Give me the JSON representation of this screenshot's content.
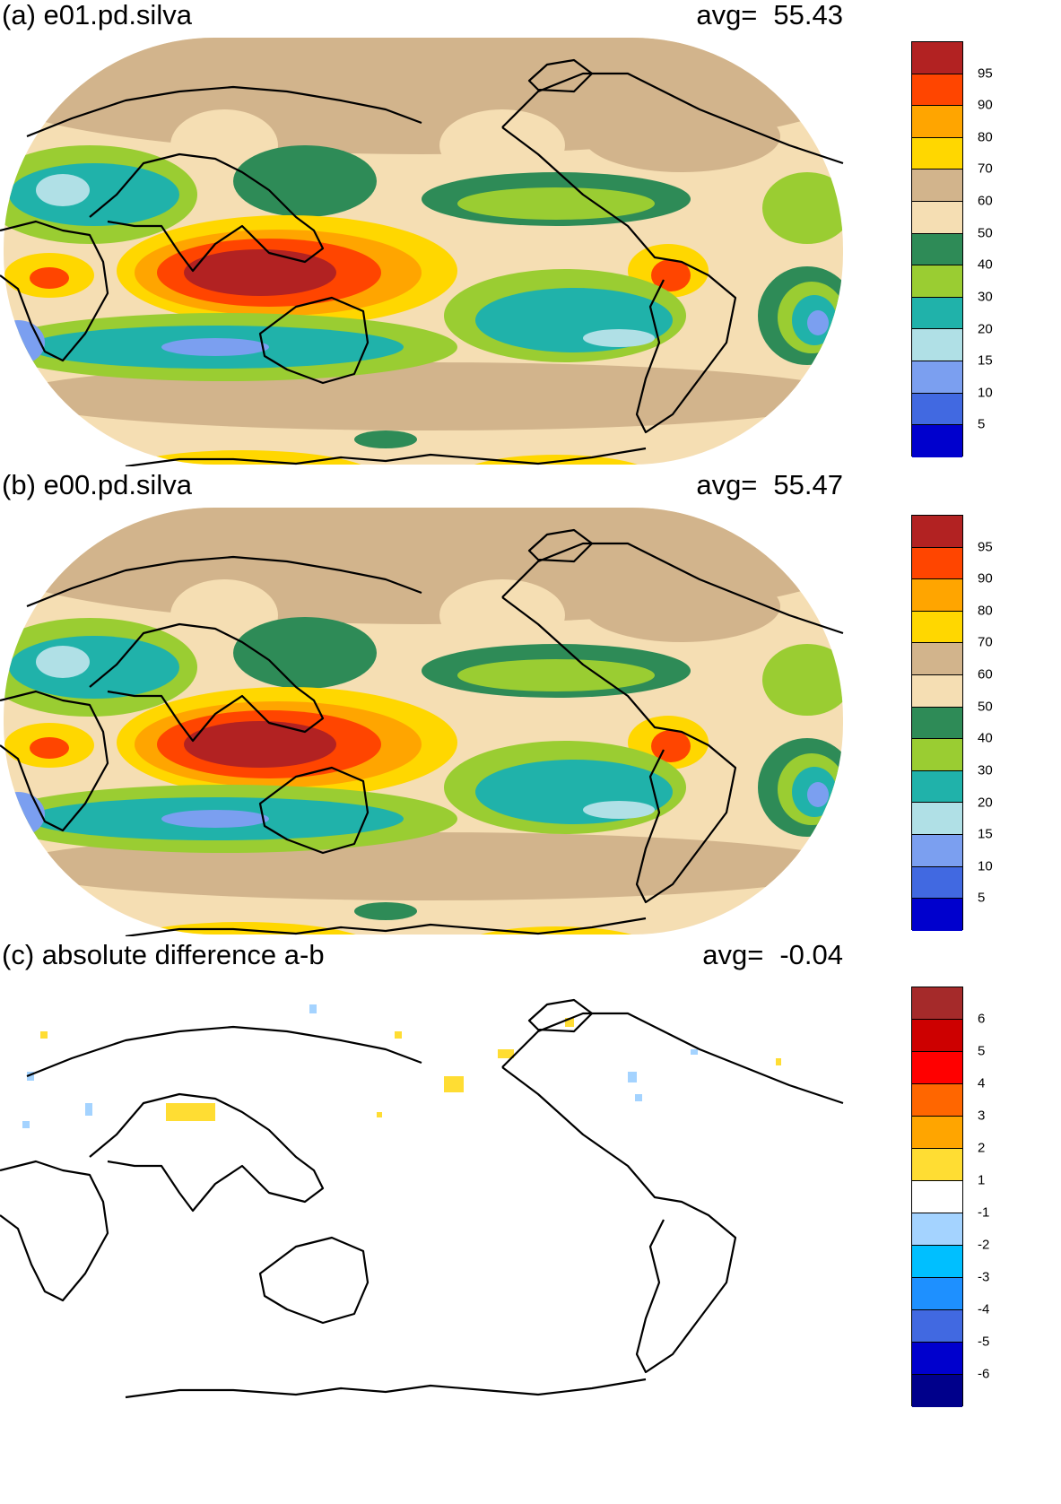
{
  "panels": [
    {
      "id": "a",
      "title": "(a) e01.pd.silva",
      "avg_label": "avg=",
      "avg_value": "55.43",
      "colorbar": {
        "colors": [
          "#b22222",
          "#ff4500",
          "#ffa500",
          "#ffd700",
          "#d2b48c",
          "#f5deb3",
          "#2e8b57",
          "#9acd32",
          "#20b2aa",
          "#b0e0e6",
          "#7b9ff0",
          "#4169e1",
          "#0000cd"
        ],
        "labels": [
          "95",
          "90",
          "80",
          "70",
          "60",
          "50",
          "40",
          "30",
          "20",
          "15",
          "10",
          "5"
        ]
      }
    },
    {
      "id": "b",
      "title": "(b) e00.pd.silva",
      "avg_label": "avg=",
      "avg_value": "55.47",
      "colorbar": {
        "colors": [
          "#b22222",
          "#ff4500",
          "#ffa500",
          "#ffd700",
          "#d2b48c",
          "#f5deb3",
          "#2e8b57",
          "#9acd32",
          "#20b2aa",
          "#b0e0e6",
          "#7b9ff0",
          "#4169e1",
          "#0000cd"
        ],
        "labels": [
          "95",
          "90",
          "80",
          "70",
          "60",
          "50",
          "40",
          "30",
          "20",
          "15",
          "10",
          "5"
        ]
      }
    },
    {
      "id": "c",
      "title": "(c) absolute difference a-b",
      "avg_label": "avg=",
      "avg_value": "-0.04",
      "colorbar": {
        "colors": [
          "#a52a2a",
          "#cd0000",
          "#ff0000",
          "#ff6600",
          "#ffa500",
          "#ffdd33",
          "#ffffff",
          "#a4d3ff",
          "#00bfff",
          "#1e90ff",
          "#4169e1",
          "#0000cd",
          "#00008b"
        ],
        "labels": [
          "6",
          "5",
          "4",
          "3",
          "2",
          "1",
          "-1",
          "-2",
          "-3",
          "-4",
          "-5",
          "-6"
        ]
      }
    }
  ]
}
